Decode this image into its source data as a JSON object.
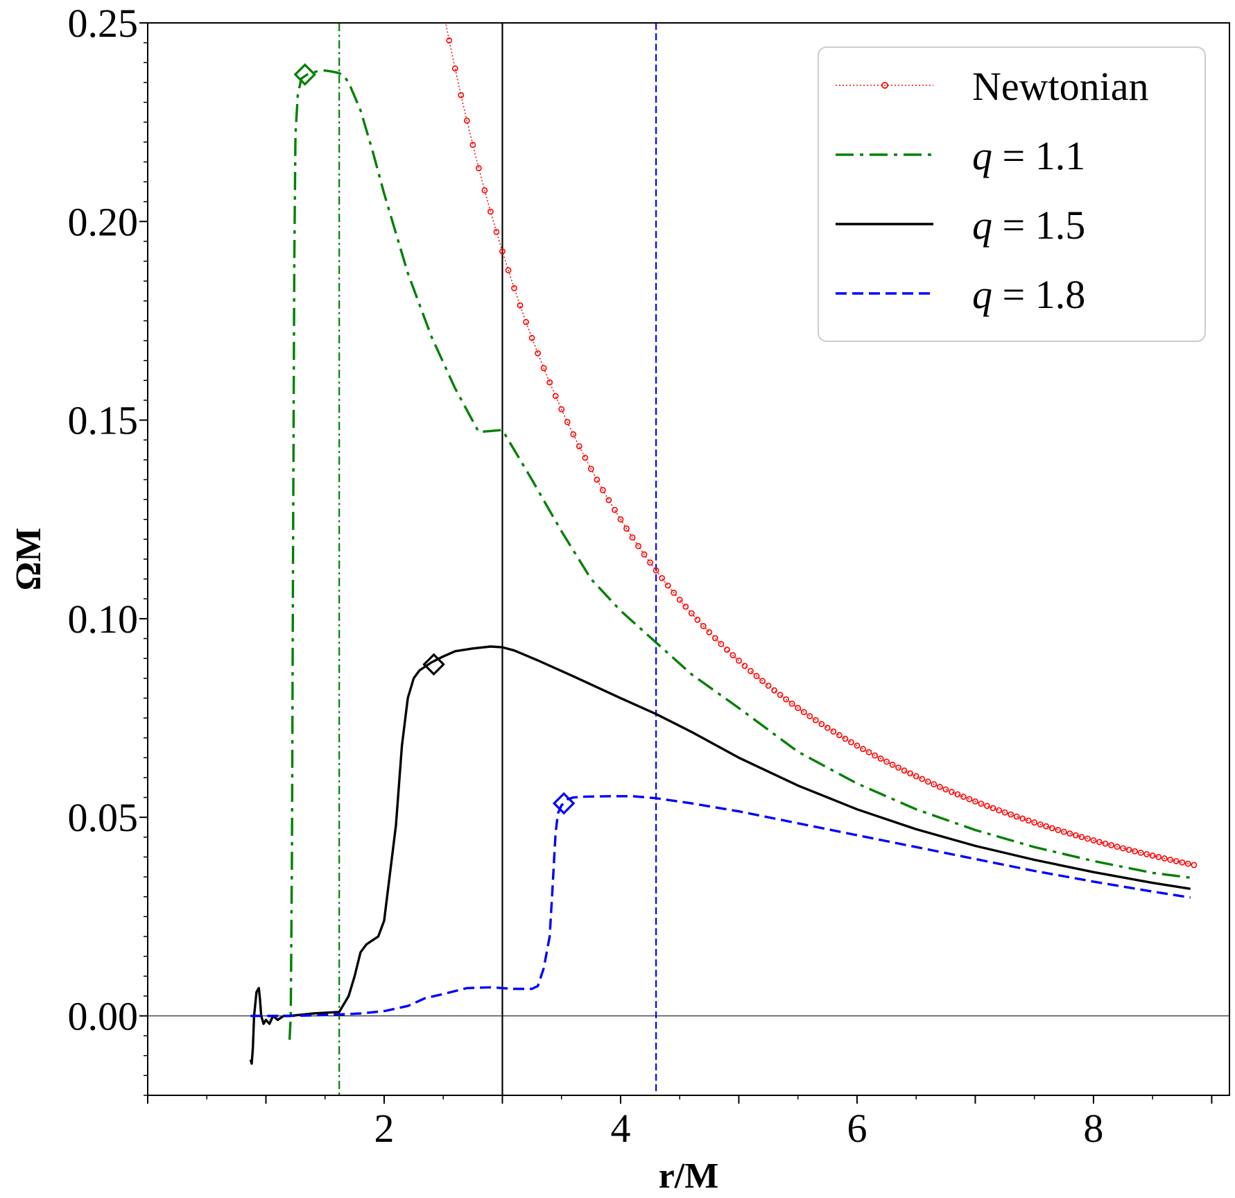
{
  "chart_data": {
    "type": "line",
    "xlabel": "r/M",
    "ylabel": "ΩM",
    "xlim": [
      0,
      9.15
    ],
    "ylim": [
      -0.02,
      0.25
    ],
    "xticks": [
      2,
      4,
      6,
      8
    ],
    "xtick_labels": [
      "2",
      "4",
      "6",
      "8"
    ],
    "yticks": [
      0.0,
      0.05,
      0.1,
      0.15,
      0.2,
      0.25
    ],
    "ytick_labels": [
      "0.00",
      "0.05",
      "0.10",
      "0.15",
      "0.20",
      "0.25"
    ],
    "legend_position": "top-right",
    "reference_lines": {
      "horizontal_zero": 0.0,
      "vertical": [
        {
          "series": "q = 1.1",
          "x": 1.62,
          "color": "#008000",
          "style": "dashdot"
        },
        {
          "series": "q = 1.5",
          "x": 3.0,
          "color": "#000000",
          "style": "solid"
        },
        {
          "series": "q = 1.8",
          "x": 4.3,
          "color": "#0000ff",
          "style": "dashed"
        }
      ]
    },
    "series": [
      {
        "name": "Newtonian",
        "legend_label": "Newtonian",
        "color": "#ff0000",
        "style": "dotted-circles",
        "x": [
          2.5,
          2.55,
          2.6,
          2.65,
          2.7,
          2.75,
          2.8,
          2.85,
          2.9,
          2.95,
          3.0,
          3.05,
          3.1,
          3.15,
          3.2,
          3.25,
          3.3,
          3.35,
          3.4,
          3.45,
          3.5,
          3.55,
          3.6,
          3.65,
          3.7,
          3.75,
          3.8,
          3.85,
          3.9,
          3.95,
          4.0,
          4.05,
          4.1,
          4.15,
          4.2,
          4.25,
          4.3,
          4.35,
          4.4,
          4.45,
          4.5,
          4.55,
          4.6,
          4.65,
          4.7,
          4.75,
          4.8,
          4.85,
          4.9,
          4.95,
          5.0,
          5.05,
          5.1,
          5.15,
          5.2,
          5.25,
          5.3,
          5.35,
          5.4,
          5.45,
          5.5,
          5.55,
          5.6,
          5.65,
          5.7,
          5.75,
          5.8,
          5.85,
          5.9,
          5.95,
          6.0,
          6.05,
          6.1,
          6.15,
          6.2,
          6.25,
          6.3,
          6.35,
          6.4,
          6.45,
          6.5,
          6.55,
          6.6,
          6.65,
          6.7,
          6.75,
          6.8,
          6.85,
          6.9,
          6.95,
          7.0,
          7.05,
          7.1,
          7.15,
          7.2,
          7.25,
          7.3,
          7.35,
          7.4,
          7.45,
          7.5,
          7.55,
          7.6,
          7.65,
          7.7,
          7.75,
          7.8,
          7.85,
          7.9,
          7.95,
          8.0,
          8.05,
          8.1,
          8.15,
          8.2,
          8.25,
          8.3,
          8.35,
          8.4,
          8.45,
          8.5,
          8.55,
          8.6,
          8.65,
          8.7,
          8.75,
          8.8,
          8.85
        ],
        "marker_every": 2
      },
      {
        "name": "q = 1.1",
        "legend_label": "q = 1.1",
        "color": "#008000",
        "style": "dashdot",
        "x": [
          1.2,
          1.21,
          1.22,
          1.23,
          1.24,
          1.25,
          1.27,
          1.3,
          1.35,
          1.4,
          1.45,
          1.5,
          1.55,
          1.6,
          1.65,
          1.7,
          1.8,
          1.9,
          2.0,
          2.2,
          2.4,
          2.6,
          2.8,
          3.0,
          3.25,
          3.5,
          3.75,
          4.0,
          4.3,
          4.6,
          5.0,
          5.5,
          6.0,
          6.5,
          7.0,
          7.5,
          8.0,
          8.5,
          8.82
        ],
        "values": [
          -0.006,
          0.0,
          0.04,
          0.12,
          0.19,
          0.222,
          0.232,
          0.236,
          0.237,
          0.2375,
          0.238,
          0.238,
          0.2378,
          0.2375,
          0.237,
          0.235,
          0.228,
          0.218,
          0.207,
          0.187,
          0.171,
          0.158,
          0.147,
          0.1475,
          0.135,
          0.122,
          0.11,
          0.102,
          0.094,
          0.086,
          0.0775,
          0.0665,
          0.0585,
          0.052,
          0.0468,
          0.0425,
          0.039,
          0.036,
          0.0348
        ],
        "marker": {
          "x": 1.33,
          "y": 0.237
        }
      },
      {
        "name": "q = 1.5",
        "legend_label": "q = 1.5",
        "color": "#000000",
        "style": "solid",
        "x": [
          0.87,
          0.88,
          0.89,
          0.9,
          0.92,
          0.94,
          0.95,
          0.96,
          0.98,
          1.0,
          1.03,
          1.06,
          1.1,
          1.15,
          1.2,
          1.3,
          1.4,
          1.5,
          1.62,
          1.7,
          1.75,
          1.8,
          1.85,
          1.9,
          1.95,
          2.0,
          2.05,
          2.1,
          2.15,
          2.2,
          2.25,
          2.3,
          2.35,
          2.4,
          2.5,
          2.6,
          2.75,
          2.9,
          3.0,
          3.1,
          3.3,
          3.6,
          4.0,
          4.3,
          4.6,
          5.0,
          5.5,
          6.0,
          6.5,
          7.0,
          7.5,
          8.0,
          8.5,
          8.82
        ],
        "values": [
          -0.011,
          -0.012,
          -0.008,
          0.0,
          0.006,
          0.007,
          0.004,
          0.0,
          -0.002,
          -0.001,
          -0.002,
          0.0,
          -0.001,
          0.0,
          0.0,
          0.0003,
          0.0006,
          0.0008,
          0.001,
          0.005,
          0.01,
          0.016,
          0.018,
          0.019,
          0.02,
          0.024,
          0.036,
          0.048,
          0.068,
          0.08,
          0.085,
          0.087,
          0.088,
          0.089,
          0.0905,
          0.0918,
          0.0925,
          0.093,
          0.0928,
          0.092,
          0.0895,
          0.0855,
          0.08,
          0.076,
          0.0715,
          0.065,
          0.058,
          0.052,
          0.047,
          0.0428,
          0.0393,
          0.0362,
          0.0335,
          0.032
        ],
        "marker": {
          "x": 2.42,
          "y": 0.0885
        }
      },
      {
        "name": "q = 1.8",
        "legend_label": "q = 1.8",
        "color": "#0000ff",
        "style": "dashed",
        "x": [
          0.87,
          1.2,
          1.5,
          1.8,
          2.0,
          2.2,
          2.35,
          2.5,
          2.7,
          2.9,
          3.0,
          3.1,
          3.25,
          3.3,
          3.35,
          3.4,
          3.42,
          3.45,
          3.47,
          3.5,
          3.55,
          3.6,
          3.7,
          3.9,
          4.1,
          4.3,
          4.6,
          5.0,
          5.5,
          6.0,
          6.5,
          7.0,
          7.5,
          8.0,
          8.5,
          8.82
        ],
        "values": [
          0.0,
          0.0,
          0.0002,
          0.0006,
          0.0012,
          0.0025,
          0.0045,
          0.0055,
          0.007,
          0.0072,
          0.007,
          0.0068,
          0.0068,
          0.0075,
          0.012,
          0.02,
          0.03,
          0.046,
          0.051,
          0.053,
          0.0545,
          0.055,
          0.0552,
          0.0553,
          0.0553,
          0.0548,
          0.0535,
          0.0515,
          0.0485,
          0.0455,
          0.0425,
          0.0395,
          0.0365,
          0.0338,
          0.0313,
          0.0298
        ],
        "marker": {
          "x": 3.52,
          "y": 0.0535
        }
      }
    ]
  }
}
